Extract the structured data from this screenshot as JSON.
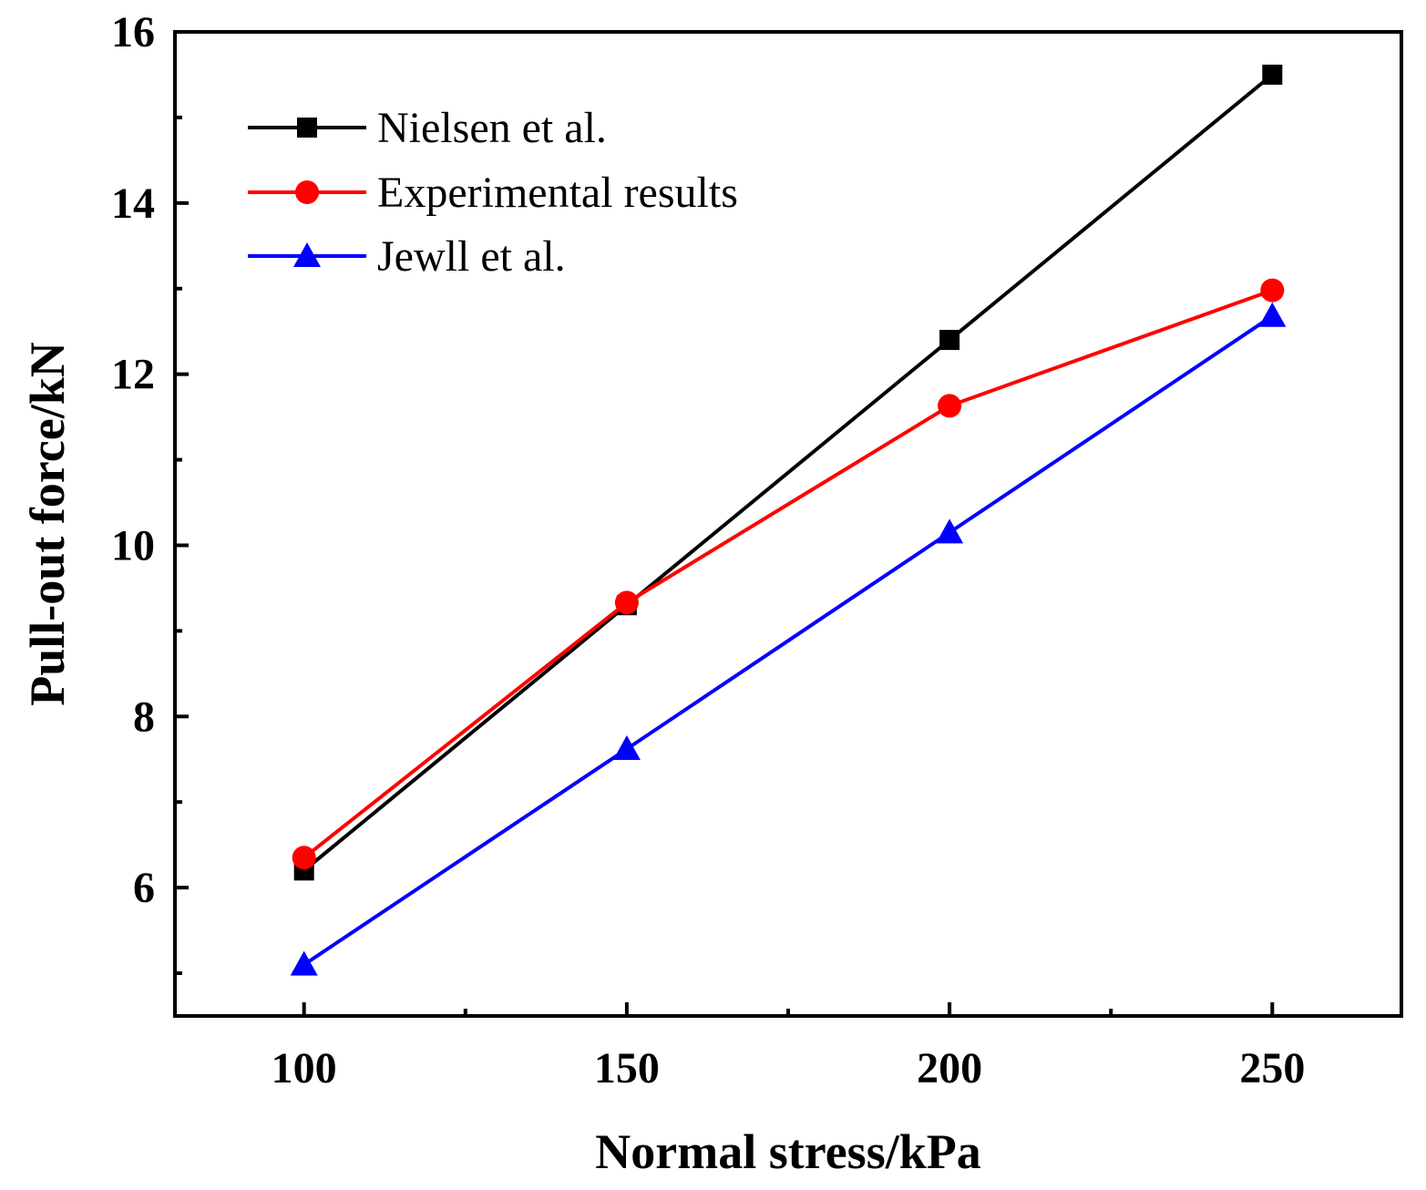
{
  "chart_data": {
    "type": "line",
    "title": "",
    "xlabel": "Normal stress/kPa",
    "ylabel": "Pull-out force/kN",
    "xlim": [
      80,
      270
    ],
    "ylim": [
      4.5,
      16
    ],
    "x_ticks": [
      100,
      150,
      200,
      250
    ],
    "x_tick_labels": [
      "100",
      "150",
      "200",
      "250"
    ],
    "x_minor_ticks": [
      125,
      175,
      225
    ],
    "y_ticks": [
      6,
      8,
      10,
      12,
      14,
      16
    ],
    "y_tick_labels": [
      "6",
      "8",
      "10",
      "12",
      "14",
      "16"
    ],
    "y_minor_ticks": [
      5,
      7,
      9,
      11,
      13,
      15
    ],
    "grid": false,
    "legend_position": "top-left",
    "x": [
      100,
      150,
      200,
      250
    ],
    "series": [
      {
        "name": "Nielsen et al.",
        "values": [
          6.2,
          9.3,
          12.4,
          15.5
        ],
        "color": "#000000",
        "marker": "square"
      },
      {
        "name": "Experimental results",
        "values": [
          6.35,
          9.33,
          11.63,
          12.98
        ],
        "color": "#ff0000",
        "marker": "circle"
      },
      {
        "name": "Jewll et al.",
        "values": [
          5.1,
          7.62,
          10.15,
          12.68
        ],
        "color": "#0000ff",
        "marker": "triangle"
      }
    ]
  }
}
